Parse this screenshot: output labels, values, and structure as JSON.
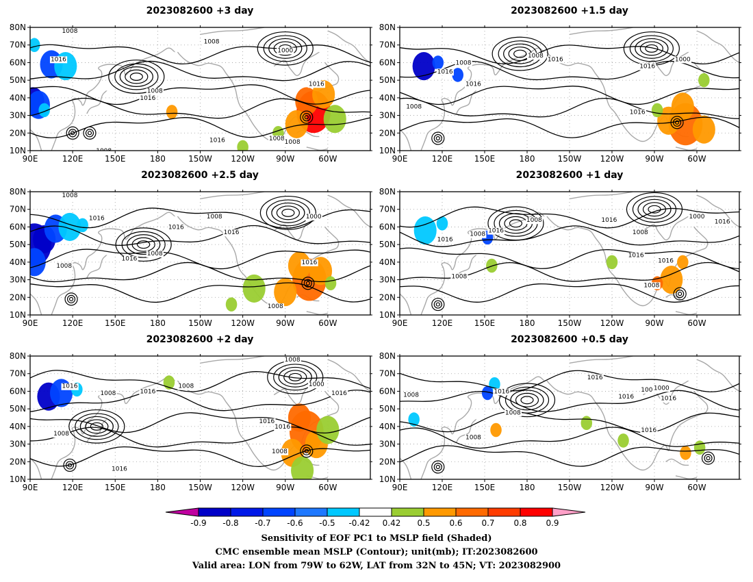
{
  "panels": [
    {
      "id": "p1",
      "title": "2023082600  +3 day",
      "shade": [
        {
          "lon": 92,
          "lat": 38,
          "v": -0.8,
          "rx": 2,
          "ry": 2
        },
        {
          "lon": 96,
          "lat": 36,
          "v": -0.7,
          "rx": 2,
          "ry": 2
        },
        {
          "lon": 100,
          "lat": 33,
          "v": -0.5,
          "rx": 1,
          "ry": 1
        },
        {
          "lon": 105,
          "lat": 59,
          "v": -0.7,
          "rx": 2,
          "ry": 2
        },
        {
          "lon": 115,
          "lat": 58,
          "v": -0.5,
          "rx": 2,
          "ry": 2
        },
        {
          "lon": 93,
          "lat": 70,
          "v": -0.5,
          "rx": 1,
          "ry": 1
        },
        {
          "lon": 290,
          "lat": 32,
          "v": 0.8,
          "rx": 3,
          "ry": 3
        },
        {
          "lon": 285,
          "lat": 38,
          "v": 0.7,
          "rx": 2,
          "ry": 2
        },
        {
          "lon": 278,
          "lat": 25,
          "v": 0.6,
          "rx": 2,
          "ry": 2
        },
        {
          "lon": 297,
          "lat": 42,
          "v": 0.6,
          "rx": 2,
          "ry": 2
        },
        {
          "lon": 265,
          "lat": 20,
          "v": 0.5,
          "rx": 1,
          "ry": 1
        },
        {
          "lon": 305,
          "lat": 28,
          "v": 0.5,
          "rx": 2,
          "ry": 2
        },
        {
          "lon": 240,
          "lat": 12,
          "v": 0.5,
          "rx": 1,
          "ry": 1
        },
        {
          "lon": 190,
          "lat": 32,
          "v": 0.6,
          "rx": 1,
          "ry": 1
        }
      ],
      "highs": [
        {
          "lon": 120,
          "lat": 20
        },
        {
          "lon": 132,
          "lat": 20
        },
        {
          "lon": 285,
          "lat": 29
        }
      ],
      "lows": [
        {
          "lon": 165,
          "lat": 52
        },
        {
          "lon": 270,
          "lat": 68
        }
      ],
      "clabels": [
        {
          "lon": 118,
          "lat": 78,
          "t": "1008"
        },
        {
          "lon": 110,
          "lat": 62,
          "t": "1016"
        },
        {
          "lon": 178,
          "lat": 44,
          "t": "1008"
        },
        {
          "lon": 173,
          "lat": 40,
          "t": "1016"
        },
        {
          "lon": 218,
          "lat": 72,
          "t": "1008"
        },
        {
          "lon": 270,
          "lat": 67,
          "t": "1000"
        },
        {
          "lon": 292,
          "lat": 48,
          "t": "1016"
        },
        {
          "lon": 222,
          "lat": 16,
          "t": "1016"
        },
        {
          "lon": 264,
          "lat": 17,
          "t": "1008"
        },
        {
          "lon": 275,
          "lat": 15,
          "t": "1008"
        },
        {
          "lon": 142,
          "lat": 10,
          "t": "1008"
        }
      ]
    },
    {
      "id": "p2",
      "title": "2023082600  +1.5 day",
      "shade": [
        {
          "lon": 107,
          "lat": 58,
          "v": -0.8,
          "rx": 2,
          "ry": 2
        },
        {
          "lon": 117,
          "lat": 60,
          "v": -0.7,
          "rx": 1,
          "ry": 1
        },
        {
          "lon": 131,
          "lat": 53,
          "v": -0.7,
          "rx": 1,
          "ry": 1
        },
        {
          "lon": 292,
          "lat": 25,
          "v": 0.7,
          "rx": 3,
          "ry": 3
        },
        {
          "lon": 280,
          "lat": 27,
          "v": 0.6,
          "rx": 2,
          "ry": 2
        },
        {
          "lon": 305,
          "lat": 22,
          "v": 0.6,
          "rx": 2,
          "ry": 2
        },
        {
          "lon": 272,
          "lat": 33,
          "v": 0.5,
          "rx": 1,
          "ry": 1
        },
        {
          "lon": 290,
          "lat": 35,
          "v": 0.6,
          "rx": 2,
          "ry": 2
        },
        {
          "lon": 305,
          "lat": 50,
          "v": 0.5,
          "rx": 1,
          "ry": 1
        }
      ],
      "highs": [
        {
          "lon": 117,
          "lat": 17
        },
        {
          "lon": 286,
          "lat": 26
        }
      ],
      "lows": [
        {
          "lon": 175,
          "lat": 65
        },
        {
          "lon": 268,
          "lat": 68
        }
      ],
      "clabels": [
        {
          "lon": 122,
          "lat": 55,
          "t": "1016"
        },
        {
          "lon": 135,
          "lat": 60,
          "t": "1008"
        },
        {
          "lon": 142,
          "lat": 48,
          "t": "1016"
        },
        {
          "lon": 186,
          "lat": 64,
          "t": "1008"
        },
        {
          "lon": 200,
          "lat": 62,
          "t": "1016"
        },
        {
          "lon": 290,
          "lat": 62,
          "t": "1000"
        },
        {
          "lon": 265,
          "lat": 58,
          "t": "1016"
        },
        {
          "lon": 258,
          "lat": 32,
          "t": "1016"
        },
        {
          "lon": 100,
          "lat": 35,
          "t": "1008"
        }
      ]
    },
    {
      "id": "p3",
      "title": "2023082600  +2.5 day",
      "shade": [
        {
          "lon": 93,
          "lat": 50,
          "v": -0.8,
          "rx": 3,
          "ry": 3
        },
        {
          "lon": 100,
          "lat": 53,
          "v": -0.8,
          "rx": 2,
          "ry": 2
        },
        {
          "lon": 108,
          "lat": 59,
          "v": -0.7,
          "rx": 2,
          "ry": 2
        },
        {
          "lon": 93,
          "lat": 40,
          "v": -0.7,
          "rx": 2,
          "ry": 2
        },
        {
          "lon": 118,
          "lat": 60,
          "v": -0.5,
          "rx": 2,
          "ry": 2
        },
        {
          "lon": 127,
          "lat": 61,
          "v": -0.5,
          "rx": 1,
          "ry": 1
        },
        {
          "lon": 287,
          "lat": 30,
          "v": 0.7,
          "rx": 3,
          "ry": 3
        },
        {
          "lon": 280,
          "lat": 38,
          "v": 0.6,
          "rx": 2,
          "ry": 2
        },
        {
          "lon": 295,
          "lat": 35,
          "v": 0.6,
          "rx": 2,
          "ry": 2
        },
        {
          "lon": 270,
          "lat": 23,
          "v": 0.6,
          "rx": 2,
          "ry": 2
        },
        {
          "lon": 248,
          "lat": 25,
          "v": 0.5,
          "rx": 2,
          "ry": 2
        },
        {
          "lon": 232,
          "lat": 16,
          "v": 0.5,
          "rx": 1,
          "ry": 1
        },
        {
          "lon": 302,
          "lat": 28,
          "v": 0.5,
          "rx": 1,
          "ry": 1
        }
      ],
      "highs": [
        {
          "lon": 119,
          "lat": 19
        },
        {
          "lon": 286,
          "lat": 28
        }
      ],
      "lows": [
        {
          "lon": 170,
          "lat": 50
        },
        {
          "lon": 272,
          "lat": 68
        }
      ],
      "clabels": [
        {
          "lon": 118,
          "lat": 78,
          "t": "1008"
        },
        {
          "lon": 137,
          "lat": 65,
          "t": "1016"
        },
        {
          "lon": 114,
          "lat": 38,
          "t": "1008"
        },
        {
          "lon": 160,
          "lat": 42,
          "t": "1016"
        },
        {
          "lon": 178,
          "lat": 45,
          "t": "1008"
        },
        {
          "lon": 193,
          "lat": 60,
          "t": "1016"
        },
        {
          "lon": 220,
          "lat": 66,
          "t": "1008"
        },
        {
          "lon": 232,
          "lat": 57,
          "t": "1016"
        },
        {
          "lon": 264,
          "lat": 81,
          "t": "1008"
        },
        {
          "lon": 290,
          "lat": 66,
          "t": "1000"
        },
        {
          "lon": 287,
          "lat": 40,
          "t": "1016"
        },
        {
          "lon": 263,
          "lat": 15,
          "t": "1008"
        }
      ]
    },
    {
      "id": "p4",
      "title": "2023082600  +1 day",
      "shade": [
        {
          "lon": 108,
          "lat": 58,
          "v": -0.5,
          "rx": 2,
          "ry": 2
        },
        {
          "lon": 120,
          "lat": 62,
          "v": -0.5,
          "rx": 1,
          "ry": 1
        },
        {
          "lon": 152,
          "lat": 54,
          "v": -0.7,
          "rx": 1,
          "ry": 1
        },
        {
          "lon": 282,
          "lat": 30,
          "v": 0.6,
          "rx": 2,
          "ry": 2
        },
        {
          "lon": 272,
          "lat": 28,
          "v": 0.7,
          "rx": 1,
          "ry": 1
        },
        {
          "lon": 290,
          "lat": 40,
          "v": 0.6,
          "rx": 1,
          "ry": 1
        },
        {
          "lon": 155,
          "lat": 38,
          "v": 0.5,
          "rx": 1,
          "ry": 1
        },
        {
          "lon": 240,
          "lat": 40,
          "v": 0.5,
          "rx": 1,
          "ry": 1
        }
      ],
      "highs": [
        {
          "lon": 117,
          "lat": 16
        },
        {
          "lon": 288,
          "lat": 22
        }
      ],
      "lows": [
        {
          "lon": 172,
          "lat": 62
        },
        {
          "lon": 270,
          "lat": 70
        }
      ],
      "clabels": [
        {
          "lon": 122,
          "lat": 53,
          "t": "1016"
        },
        {
          "lon": 145,
          "lat": 56,
          "t": "1008"
        },
        {
          "lon": 158,
          "lat": 58,
          "t": "1016"
        },
        {
          "lon": 185,
          "lat": 64,
          "t": "1008"
        },
        {
          "lon": 238,
          "lat": 64,
          "t": "1016"
        },
        {
          "lon": 260,
          "lat": 57,
          "t": "1008"
        },
        {
          "lon": 300,
          "lat": 66,
          "t": "1000"
        },
        {
          "lon": 318,
          "lat": 63,
          "t": "1016"
        },
        {
          "lon": 257,
          "lat": 44,
          "t": "1016"
        },
        {
          "lon": 278,
          "lat": 41,
          "t": "1016"
        },
        {
          "lon": 268,
          "lat": 27,
          "t": "1008"
        },
        {
          "lon": 132,
          "lat": 32,
          "t": "1008"
        }
      ]
    },
    {
      "id": "p5",
      "title": "2023082600  +2 day",
      "shade": [
        {
          "lon": 103,
          "lat": 57,
          "v": -0.8,
          "rx": 2,
          "ry": 2
        },
        {
          "lon": 112,
          "lat": 59,
          "v": -0.7,
          "rx": 2,
          "ry": 2
        },
        {
          "lon": 123,
          "lat": 61,
          "v": -0.5,
          "rx": 1,
          "ry": 1
        },
        {
          "lon": 285,
          "lat": 37,
          "v": 0.7,
          "rx": 3,
          "ry": 3
        },
        {
          "lon": 280,
          "lat": 45,
          "v": 0.7,
          "rx": 2,
          "ry": 2
        },
        {
          "lon": 292,
          "lat": 30,
          "v": 0.6,
          "rx": 2,
          "ry": 2
        },
        {
          "lon": 275,
          "lat": 25,
          "v": 0.6,
          "rx": 2,
          "ry": 2
        },
        {
          "lon": 300,
          "lat": 38,
          "v": 0.5,
          "rx": 2,
          "ry": 2
        },
        {
          "lon": 282,
          "lat": 15,
          "v": 0.5,
          "rx": 2,
          "ry": 2
        },
        {
          "lon": 188,
          "lat": 65,
          "v": 0.5,
          "rx": 1,
          "ry": 1
        }
      ],
      "highs": [
        {
          "lon": 118,
          "lat": 18
        },
        {
          "lon": 285,
          "lat": 26
        }
      ],
      "lows": [
        {
          "lon": 137,
          "lat": 40
        },
        {
          "lon": 277,
          "lat": 68
        }
      ],
      "clabels": [
        {
          "lon": 118,
          "lat": 63,
          "t": "1016"
        },
        {
          "lon": 145,
          "lat": 59,
          "t": "1008"
        },
        {
          "lon": 173,
          "lat": 60,
          "t": "1016"
        },
        {
          "lon": 200,
          "lat": 63,
          "t": "1008"
        },
        {
          "lon": 257,
          "lat": 43,
          "t": "1016"
        },
        {
          "lon": 268,
          "lat": 40,
          "t": "1016"
        },
        {
          "lon": 266,
          "lat": 26,
          "t": "1008"
        },
        {
          "lon": 275,
          "lat": 78,
          "t": "1008"
        },
        {
          "lon": 292,
          "lat": 64,
          "t": "1000"
        },
        {
          "lon": 308,
          "lat": 59,
          "t": "1016"
        },
        {
          "lon": 112,
          "lat": 36,
          "t": "1008"
        },
        {
          "lon": 153,
          "lat": 16,
          "t": "1016"
        }
      ]
    },
    {
      "id": "p6",
      "title": "2023082600  +0.5 day",
      "shade": [
        {
          "lon": 157,
          "lat": 64,
          "v": -0.5,
          "rx": 1,
          "ry": 1
        },
        {
          "lon": 152,
          "lat": 59,
          "v": -0.7,
          "rx": 1,
          "ry": 1
        },
        {
          "lon": 100,
          "lat": 44,
          "v": -0.5,
          "rx": 1,
          "ry": 1
        },
        {
          "lon": 158,
          "lat": 38,
          "v": 0.6,
          "rx": 1,
          "ry": 1
        },
        {
          "lon": 292,
          "lat": 25,
          "v": 0.6,
          "rx": 1,
          "ry": 1
        },
        {
          "lon": 302,
          "lat": 28,
          "v": 0.5,
          "rx": 1,
          "ry": 1
        },
        {
          "lon": 222,
          "lat": 42,
          "v": 0.5,
          "rx": 1,
          "ry": 1
        },
        {
          "lon": 248,
          "lat": 32,
          "v": 0.5,
          "rx": 1,
          "ry": 1
        }
      ],
      "highs": [
        {
          "lon": 117,
          "lat": 17
        },
        {
          "lon": 308,
          "lat": 22
        }
      ],
      "lows": [
        {
          "lon": 180,
          "lat": 55
        }
      ],
      "clabels": [
        {
          "lon": 98,
          "lat": 58,
          "t": "1008"
        },
        {
          "lon": 162,
          "lat": 60,
          "t": "1016"
        },
        {
          "lon": 170,
          "lat": 48,
          "t": "1008"
        },
        {
          "lon": 228,
          "lat": 68,
          "t": "1016"
        },
        {
          "lon": 250,
          "lat": 57,
          "t": "1016"
        },
        {
          "lon": 266,
          "lat": 61,
          "t": "1008"
        },
        {
          "lon": 275,
          "lat": 62,
          "t": "1000"
        },
        {
          "lon": 280,
          "lat": 56,
          "t": "1016"
        },
        {
          "lon": 142,
          "lat": 34,
          "t": "1008"
        },
        {
          "lon": 266,
          "lat": 38,
          "t": "1016"
        }
      ]
    }
  ],
  "axes": {
    "lon_range": [
      90,
      330
    ],
    "lat_range": [
      10,
      80
    ],
    "x_ticks": [
      {
        "lon": 90,
        "label": "90E"
      },
      {
        "lon": 120,
        "label": "120E"
      },
      {
        "lon": 150,
        "label": "150E"
      },
      {
        "lon": 180,
        "label": "180"
      },
      {
        "lon": 210,
        "label": "150W"
      },
      {
        "lon": 240,
        "label": "120W"
      },
      {
        "lon": 270,
        "label": "90W"
      },
      {
        "lon": 300,
        "label": "60W"
      }
    ],
    "y_ticks": [
      {
        "lat": 10,
        "label": "10N"
      },
      {
        "lat": 20,
        "label": "20N"
      },
      {
        "lat": 30,
        "label": "30N"
      },
      {
        "lat": 40,
        "label": "40N"
      },
      {
        "lat": 50,
        "label": "50N"
      },
      {
        "lat": 60,
        "label": "60N"
      },
      {
        "lat": 70,
        "label": "70N"
      },
      {
        "lat": 80,
        "label": "80N"
      }
    ]
  },
  "colorbar": {
    "ticks": [
      "-0.9",
      "-0.8",
      "-0.7",
      "-0.6",
      "-0.5",
      "-0.42",
      "0.42",
      "0.5",
      "0.6",
      "0.7",
      "0.8",
      "0.9"
    ],
    "colors": [
      "#c000a0",
      "#0000c8",
      "#0018e8",
      "#0044ff",
      "#1e78ff",
      "#00c8ff",
      "#ffffff",
      "#9acd32",
      "#ff9900",
      "#ff6a00",
      "#ff3c00",
      "#ff0000",
      "#ffa0c8"
    ],
    "values": [
      -0.95,
      -0.85,
      -0.75,
      -0.65,
      -0.55,
      -0.46,
      0,
      0.46,
      0.55,
      0.65,
      0.75,
      0.85,
      0.95
    ]
  },
  "caption": {
    "line1": "Sensitivity of EOF PC1 to MSLP field (Shaded)",
    "line2": "CMC ensemble mean MSLP (Contour); unit(mb); IT:2023082600",
    "line3": "Valid area: LON from 79W to 62W, LAT from 32N to 45N; VT: 2023082900"
  }
}
